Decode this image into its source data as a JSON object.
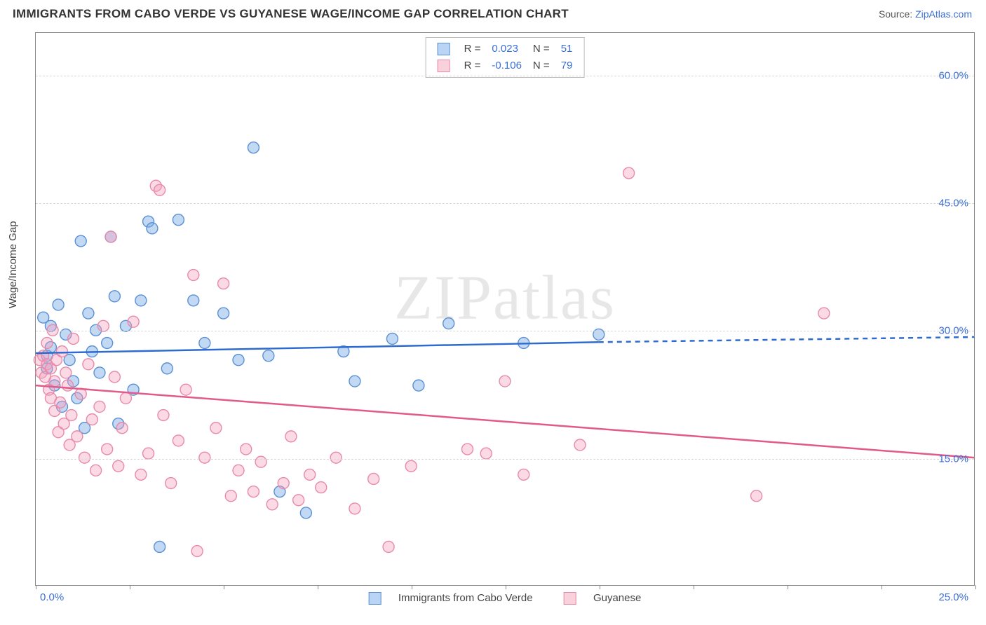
{
  "title": "IMMIGRANTS FROM CABO VERDE VS GUYANESE WAGE/INCOME GAP CORRELATION CHART",
  "source_label": "Source: ",
  "source_link": "ZipAtlas.com",
  "y_axis_label": "Wage/Income Gap",
  "watermark": "ZIPatlas",
  "chart": {
    "type": "scatter",
    "xlim": [
      0,
      25
    ],
    "ylim": [
      0,
      65
    ],
    "x_ticks": {
      "min_label": "0.0%",
      "max_label": "25.0%"
    },
    "y_gridlines": [
      {
        "value": 15,
        "label": "15.0%"
      },
      {
        "value": 30,
        "label": "30.0%"
      },
      {
        "value": 45,
        "label": "45.0%"
      },
      {
        "value": 60,
        "label": "60.0%"
      }
    ],
    "x_tick_positions": [
      0,
      2.5,
      5,
      7.5,
      10,
      12.5,
      15,
      17.5,
      20,
      22.5,
      25
    ],
    "background_color": "#ffffff",
    "grid_color": "#d8d8d8",
    "frame_color": "#888888",
    "marker_radius": 8,
    "marker_stroke_width": 1.4,
    "trend_line_width": 2.5,
    "series": [
      {
        "id": "cabo_verde",
        "label": "Immigrants from Cabo Verde",
        "R": "0.023",
        "N": "51",
        "fill": "rgba(120,170,230,0.45)",
        "stroke": "#5b8fd6",
        "trend_color": "#2e6bd1",
        "trend": {
          "x1": 0,
          "y1": 27.3,
          "x2": 15,
          "y2": 28.6,
          "dash_to_x": 25,
          "dash_to_y": 29.2
        },
        "points": [
          [
            0.2,
            31.5
          ],
          [
            0.3,
            27.0
          ],
          [
            0.3,
            25.5
          ],
          [
            0.4,
            30.5
          ],
          [
            0.4,
            28.0
          ],
          [
            0.5,
            23.5
          ],
          [
            0.6,
            33.0
          ],
          [
            0.7,
            21.0
          ],
          [
            0.8,
            29.5
          ],
          [
            0.9,
            26.5
          ],
          [
            1.0,
            24.0
          ],
          [
            1.1,
            22.0
          ],
          [
            1.2,
            40.5
          ],
          [
            1.3,
            18.5
          ],
          [
            1.4,
            32.0
          ],
          [
            1.5,
            27.5
          ],
          [
            1.6,
            30.0
          ],
          [
            1.7,
            25.0
          ],
          [
            1.9,
            28.5
          ],
          [
            2.0,
            41.0
          ],
          [
            2.1,
            34.0
          ],
          [
            2.2,
            19.0
          ],
          [
            2.4,
            30.5
          ],
          [
            2.6,
            23.0
          ],
          [
            2.8,
            33.5
          ],
          [
            3.0,
            42.8
          ],
          [
            3.1,
            42.0
          ],
          [
            3.3,
            4.5
          ],
          [
            3.5,
            25.5
          ],
          [
            3.8,
            43.0
          ],
          [
            4.2,
            33.5
          ],
          [
            4.5,
            28.5
          ],
          [
            5.0,
            32.0
          ],
          [
            5.4,
            26.5
          ],
          [
            5.8,
            51.5
          ],
          [
            6.2,
            27.0
          ],
          [
            6.5,
            11.0
          ],
          [
            7.2,
            8.5
          ],
          [
            8.2,
            27.5
          ],
          [
            8.5,
            24.0
          ],
          [
            9.5,
            29.0
          ],
          [
            10.2,
            23.5
          ],
          [
            11.0,
            30.8
          ],
          [
            13.0,
            28.5
          ],
          [
            15.0,
            29.5
          ]
        ]
      },
      {
        "id": "guyanese",
        "label": "Guyanese",
        "R": "-0.106",
        "N": "79",
        "fill": "rgba(245,160,190,0.40)",
        "stroke": "#e88aa8",
        "trend_color": "#e05a8a",
        "trend": {
          "x1": 0,
          "y1": 23.5,
          "x2": 25,
          "y2": 15.0
        },
        "points": [
          [
            0.1,
            26.5
          ],
          [
            0.15,
            25.0
          ],
          [
            0.2,
            27.0
          ],
          [
            0.25,
            24.5
          ],
          [
            0.3,
            26.0
          ],
          [
            0.3,
            28.5
          ],
          [
            0.35,
            23.0
          ],
          [
            0.4,
            25.5
          ],
          [
            0.4,
            22.0
          ],
          [
            0.45,
            30.0
          ],
          [
            0.5,
            24.0
          ],
          [
            0.5,
            20.5
          ],
          [
            0.55,
            26.5
          ],
          [
            0.6,
            18.0
          ],
          [
            0.65,
            21.5
          ],
          [
            0.7,
            27.5
          ],
          [
            0.75,
            19.0
          ],
          [
            0.8,
            25.0
          ],
          [
            0.85,
            23.5
          ],
          [
            0.9,
            16.5
          ],
          [
            0.95,
            20.0
          ],
          [
            1.0,
            29.0
          ],
          [
            1.1,
            17.5
          ],
          [
            1.2,
            22.5
          ],
          [
            1.3,
            15.0
          ],
          [
            1.4,
            26.0
          ],
          [
            1.5,
            19.5
          ],
          [
            1.6,
            13.5
          ],
          [
            1.7,
            21.0
          ],
          [
            1.8,
            30.5
          ],
          [
            1.9,
            16.0
          ],
          [
            2.0,
            41.0
          ],
          [
            2.1,
            24.5
          ],
          [
            2.2,
            14.0
          ],
          [
            2.3,
            18.5
          ],
          [
            2.4,
            22.0
          ],
          [
            2.6,
            31.0
          ],
          [
            2.8,
            13.0
          ],
          [
            3.0,
            15.5
          ],
          [
            3.2,
            47.0
          ],
          [
            3.3,
            46.5
          ],
          [
            3.4,
            20.0
          ],
          [
            3.6,
            12.0
          ],
          [
            3.8,
            17.0
          ],
          [
            4.0,
            23.0
          ],
          [
            4.2,
            36.5
          ],
          [
            4.3,
            4.0
          ],
          [
            4.5,
            15.0
          ],
          [
            4.8,
            18.5
          ],
          [
            5.0,
            35.5
          ],
          [
            5.2,
            10.5
          ],
          [
            5.4,
            13.5
          ],
          [
            5.6,
            16.0
          ],
          [
            5.8,
            11.0
          ],
          [
            6.0,
            14.5
          ],
          [
            6.3,
            9.5
          ],
          [
            6.6,
            12.0
          ],
          [
            6.8,
            17.5
          ],
          [
            7.0,
            10.0
          ],
          [
            7.3,
            13.0
          ],
          [
            7.6,
            11.5
          ],
          [
            8.0,
            15.0
          ],
          [
            8.5,
            9.0
          ],
          [
            9.0,
            12.5
          ],
          [
            9.4,
            4.5
          ],
          [
            10.0,
            14.0
          ],
          [
            11.5,
            16.0
          ],
          [
            12.0,
            15.5
          ],
          [
            12.5,
            24.0
          ],
          [
            13.0,
            13.0
          ],
          [
            14.5,
            16.5
          ],
          [
            15.8,
            48.5
          ],
          [
            19.2,
            10.5
          ],
          [
            21.0,
            32.0
          ]
        ]
      }
    ]
  },
  "legend_top": {
    "rows": [
      {
        "swatch": "blue",
        "r_label": "R =",
        "r_val": "0.023",
        "n_label": "N =",
        "n_val": "51"
      },
      {
        "swatch": "pink",
        "r_label": "R =",
        "r_val": "-0.106",
        "n_label": "N =",
        "n_val": "79"
      }
    ]
  }
}
